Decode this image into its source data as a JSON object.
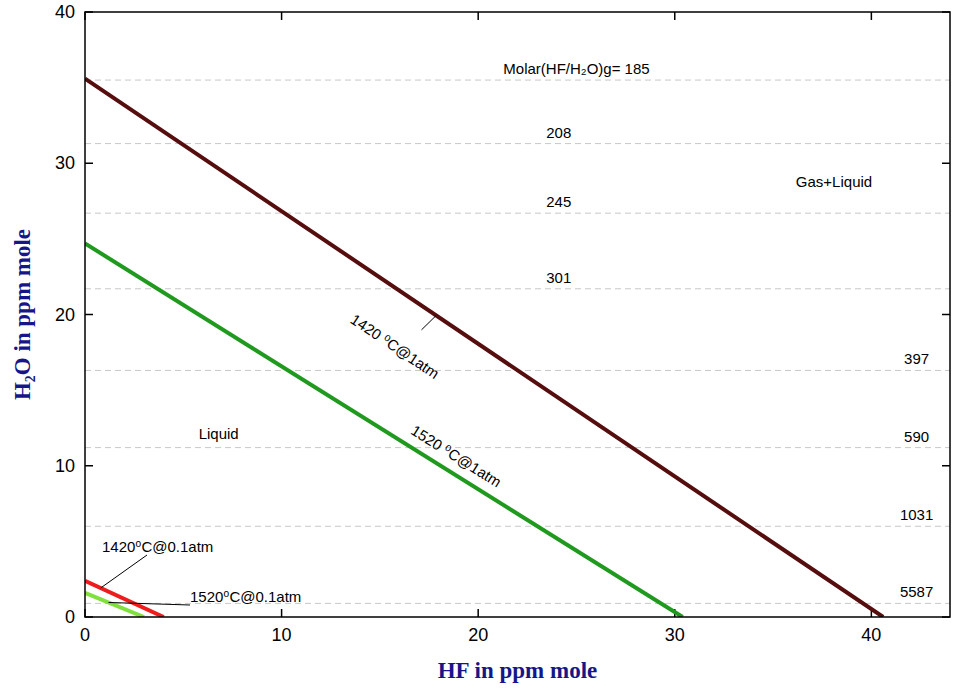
{
  "chart_data": {
    "type": "line",
    "x_label": "HF in ppm mole",
    "y_label": "H₂O in ppm mole",
    "xlim": [
      0,
      44
    ],
    "ylim": [
      0,
      40
    ],
    "xticks": [
      0,
      10,
      20,
      30,
      40
    ],
    "yticks": [
      0,
      10,
      20,
      30,
      40
    ],
    "series": [
      {
        "name": "1420 ⁰C@1atm",
        "color": "#560d0d",
        "x": [
          0,
          40.6
        ],
        "values": [
          35.6,
          0
        ]
      },
      {
        "name": "1520 ⁰C@1atm",
        "color": "#1f9a1f",
        "x": [
          0,
          30.4
        ],
        "values": [
          24.7,
          0
        ]
      },
      {
        "name": "1420⁰C@0.1atm",
        "color": "#ee1c1c",
        "x": [
          0,
          4.0
        ],
        "values": [
          2.4,
          0
        ]
      },
      {
        "name": "1520⁰C@0.1atm",
        "color": "#80e03c",
        "x": [
          0,
          3.0
        ],
        "values": [
          1.6,
          0
        ]
      }
    ],
    "ratio_lines": [
      {
        "label": "Molar(HF/H₂O)g= 185",
        "x": 25,
        "y": 35.5
      },
      {
        "label": "208",
        "x": 24.1,
        "y": 31.3
      },
      {
        "label": "245",
        "x": 24.1,
        "y": 26.7
      },
      {
        "label": "301",
        "x": 24.1,
        "y": 21.7
      },
      {
        "label": "397",
        "x": 42.3,
        "y": 16.3
      },
      {
        "label": "590",
        "x": 42.3,
        "y": 11.2
      },
      {
        "label": "1031",
        "x": 42.3,
        "y": 6.0
      },
      {
        "label": "5587",
        "x": 42.3,
        "y": 0.9
      }
    ],
    "annotations": [
      {
        "text": "Liquid",
        "x": 6.8,
        "y": 11.8
      },
      {
        "text": "Gas+Liquid",
        "x": 38.1,
        "y": 28.4
      }
    ]
  }
}
